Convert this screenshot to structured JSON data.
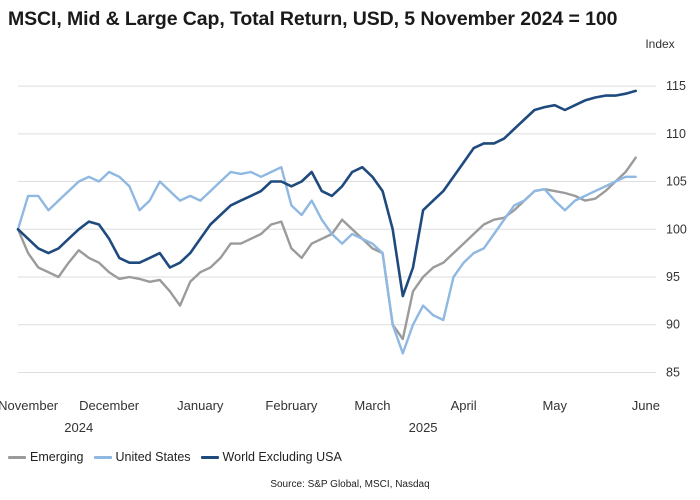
{
  "chart_data": {
    "type": "line",
    "title": "MSCI, Mid & Large Cap, Total Return, USD, 5 November 2024 = 100",
    "ylabel": "Index",
    "xlabel": "",
    "ylim": [
      84,
      117
    ],
    "yticks": [
      85,
      90,
      95,
      100,
      105,
      110,
      115
    ],
    "x_tick_labels": [
      "November",
      "December",
      "January",
      "February",
      "March",
      "April",
      "May",
      "June"
    ],
    "x_tick_pos": [
      0.5,
      4.5,
      9,
      13.5,
      17.5,
      22,
      26.5,
      31
    ],
    "year_labels": [
      {
        "label": "2024",
        "pos": 3
      },
      {
        "label": "2025",
        "pos": 20
      }
    ],
    "x_domain": [
      0,
      31.5
    ],
    "grid": true,
    "legend": "bottom-left",
    "source": "Source: S&P Global, MSCI, Nasdaq",
    "x": [
      0,
      0.5,
      1,
      1.5,
      2,
      2.5,
      3,
      3.5,
      4,
      4.5,
      5,
      5.5,
      6,
      6.5,
      7,
      7.5,
      8,
      8.5,
      9,
      9.5,
      10,
      10.5,
      11,
      11.5,
      12,
      12.5,
      13,
      13.5,
      14,
      14.5,
      15,
      15.5,
      16,
      16.5,
      17,
      17.5,
      18,
      18.5,
      19,
      19.5,
      20,
      20.5,
      21,
      21.5,
      22,
      22.5,
      23,
      23.5,
      24,
      24.5,
      25,
      25.5,
      26,
      26.5,
      27,
      27.5,
      28,
      28.5,
      29,
      29.5,
      30,
      30.5
    ],
    "series": [
      {
        "name": "Emerging",
        "color": "#9b9b9b",
        "values": [
          100,
          97.5,
          96,
          95.5,
          95,
          96.5,
          97.8,
          97,
          96.5,
          95.5,
          94.8,
          95,
          94.8,
          94.5,
          94.7,
          93.5,
          92,
          94.5,
          95.5,
          96,
          97,
          98.5,
          98.5,
          99,
          99.5,
          100.5,
          100.8,
          98,
          97,
          98.5,
          99,
          99.5,
          101,
          100,
          99,
          98,
          97.5,
          90,
          88.5,
          93.5,
          95,
          96,
          96.5,
          97.5,
          98.5,
          99.5,
          100.5,
          101,
          101.2,
          102,
          103,
          104,
          104.2,
          104,
          103.8,
          103.5,
          103,
          103.2,
          104,
          105,
          106,
          107.5
        ]
      },
      {
        "name": "United States",
        "color": "#8fb8e2",
        "values": [
          100,
          103.5,
          103.5,
          102,
          103,
          104,
          105,
          105.5,
          105,
          106,
          105.5,
          104.5,
          102,
          103,
          105,
          104,
          103,
          103.5,
          103,
          104,
          105,
          106,
          105.8,
          106,
          105.5,
          106,
          106.5,
          102.5,
          101.5,
          103,
          101,
          99.5,
          98.5,
          99.5,
          99,
          98.5,
          97.5,
          90,
          87,
          90,
          92,
          91,
          90.5,
          95,
          96.5,
          97.5,
          98,
          99.5,
          101,
          102.5,
          103,
          104,
          104.2,
          103,
          102,
          103,
          103.5,
          104,
          104.5,
          105,
          105.5,
          105.5
        ]
      },
      {
        "name": "World Excluding USA",
        "color": "#1f4a7e",
        "values": [
          100,
          99,
          98,
          97.5,
          98,
          99,
          100,
          100.8,
          100.5,
          99,
          97,
          96.5,
          96.5,
          97,
          97.5,
          96,
          96.5,
          97.5,
          99,
          100.5,
          101.5,
          102.5,
          103,
          103.5,
          104,
          105,
          105,
          104.5,
          105,
          106,
          104,
          103.5,
          104.5,
          106,
          106.5,
          105.5,
          104,
          100,
          93,
          96,
          102,
          103,
          104,
          105.5,
          107,
          108.5,
          109,
          109,
          109.5,
          110.5,
          111.5,
          112.5,
          112.8,
          113,
          112.5,
          113,
          113.5,
          113.8,
          114,
          114,
          114.2,
          114.5
        ]
      }
    ]
  }
}
